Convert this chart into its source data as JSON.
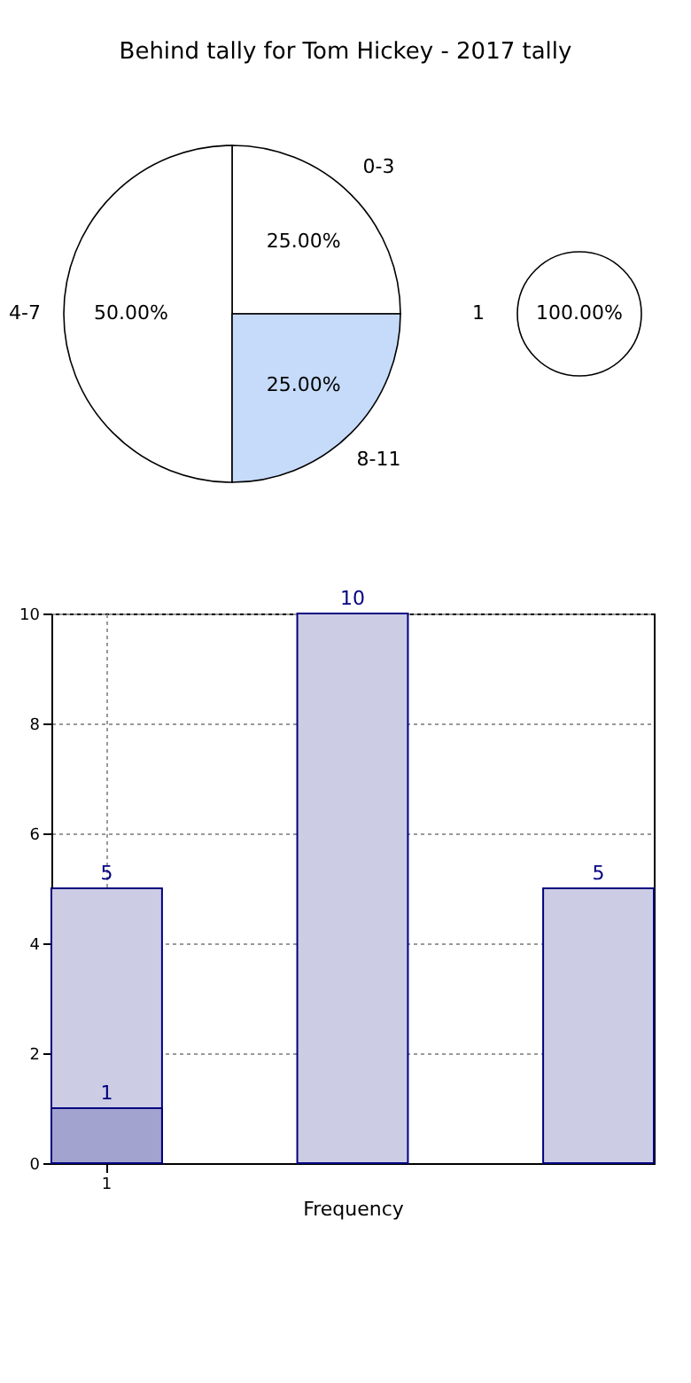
{
  "chart_data": [
    {
      "type": "pie",
      "title": "Behind tally for Tom Hickey - 2017 tally",
      "categories": [
        "0-3",
        "4-7",
        "8-11"
      ],
      "values": [
        25,
        50,
        25
      ],
      "colors": [
        "#ffffff",
        "#ffffff",
        "#c6dbfa"
      ],
      "value_labels": [
        "25.00%",
        "50.00%",
        "25.00%"
      ]
    },
    {
      "type": "pie",
      "categories": [
        "1"
      ],
      "values": [
        100
      ],
      "colors": [
        "#ffffff"
      ],
      "value_labels": [
        "100.00%"
      ]
    },
    {
      "type": "bar",
      "xlabel": "Frequency",
      "categories": [
        "1",
        null,
        null
      ],
      "series": [
        {
          "color": "#ccccE4",
          "values": [
            5,
            10,
            5
          ]
        },
        {
          "color": "#a3a3cf",
          "values": [
            1,
            null,
            null
          ]
        }
      ],
      "ylim": [
        0,
        10
      ],
      "yticks": [
        0,
        2,
        4,
        6,
        8,
        10
      ],
      "grid": true,
      "data_labels": true
    }
  ]
}
